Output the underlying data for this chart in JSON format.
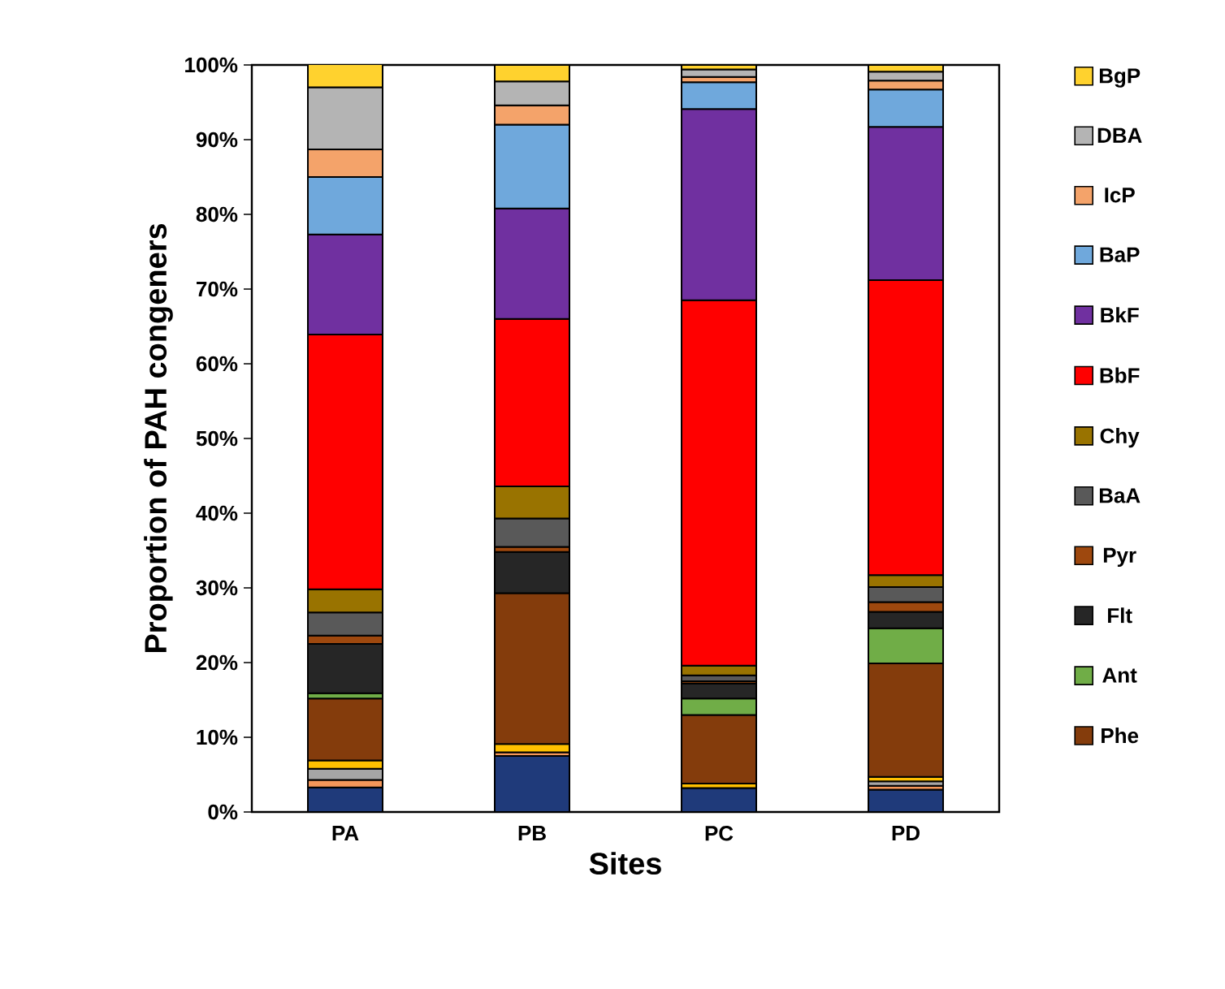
{
  "chart_data": {
    "type": "bar",
    "stacked": true,
    "xlabel": "Sites",
    "ylabel": "Proportion of PAH congeners",
    "categories": [
      "PA",
      "PB",
      "PC",
      "PD"
    ],
    "series": [
      {
        "color": "#1f3a7a",
        "values": [
          3.3,
          7.5,
          3.2,
          3.0
        ]
      },
      {
        "color": "#f4975a",
        "values": [
          1.0,
          0.5,
          null,
          0.5
        ]
      },
      {
        "color": "#a6a6a6",
        "values": [
          1.5,
          null,
          null,
          0.6
        ]
      },
      {
        "color": "#ffc000",
        "values": [
          1.1,
          1.1,
          0.6,
          0.6
        ]
      },
      {
        "name": "Phe",
        "color": "#843c0c",
        "values": [
          8.3,
          20.2,
          9.2,
          15.2
        ]
      },
      {
        "name": "Ant",
        "color": "#70ad47",
        "values": [
          0.7,
          null,
          2.2,
          4.7
        ]
      },
      {
        "name": "Flt",
        "color": "#262626",
        "values": [
          6.6,
          5.5,
          2.0,
          2.2
        ]
      },
      {
        "name": "Pyr",
        "color": "#9e480e",
        "values": [
          1.1,
          0.7,
          0.3,
          1.3
        ]
      },
      {
        "name": "BaA",
        "color": "#595959",
        "values": [
          3.1,
          3.8,
          0.8,
          2.0
        ]
      },
      {
        "name": "Chy",
        "color": "#997300",
        "values": [
          3.1,
          4.3,
          1.3,
          1.6
        ]
      },
      {
        "name": "BbF",
        "color": "#ff0000",
        "values": [
          34.1,
          22.4,
          48.9,
          39.5
        ]
      },
      {
        "name": "BkF",
        "color": "#7030a0",
        "values": [
          13.4,
          14.8,
          25.6,
          20.5
        ]
      },
      {
        "name": "BaP",
        "color": "#6fa8dc",
        "values": [
          7.7,
          11.2,
          3.6,
          5.0
        ]
      },
      {
        "name": "IcP",
        "color": "#f4a36a",
        "values": [
          3.7,
          2.6,
          0.7,
          1.2
        ]
      },
      {
        "name": "DBA",
        "color": "#b4b4b4",
        "values": [
          8.3,
          3.2,
          1.0,
          1.2
        ]
      },
      {
        "name": "BgP",
        "color": "#ffd22e",
        "values": [
          3.1,
          2.2,
          0.6,
          0.9
        ]
      }
    ],
    "ylim": [
      0,
      100
    ],
    "yticks": [
      {
        "value": 0,
        "label": "0%"
      },
      {
        "value": 10,
        "label": "10%"
      },
      {
        "value": 20,
        "label": "20%"
      },
      {
        "value": 30,
        "label": "30%"
      },
      {
        "value": 40,
        "label": "40%"
      },
      {
        "value": 50,
        "label": "50%"
      },
      {
        "value": 60,
        "label": "60%"
      },
      {
        "value": 70,
        "label": "70%"
      },
      {
        "value": 80,
        "label": "80%"
      },
      {
        "value": 90,
        "label": "90%"
      },
      {
        "value": 100,
        "label": "100%"
      }
    ],
    "legend": "right"
  }
}
